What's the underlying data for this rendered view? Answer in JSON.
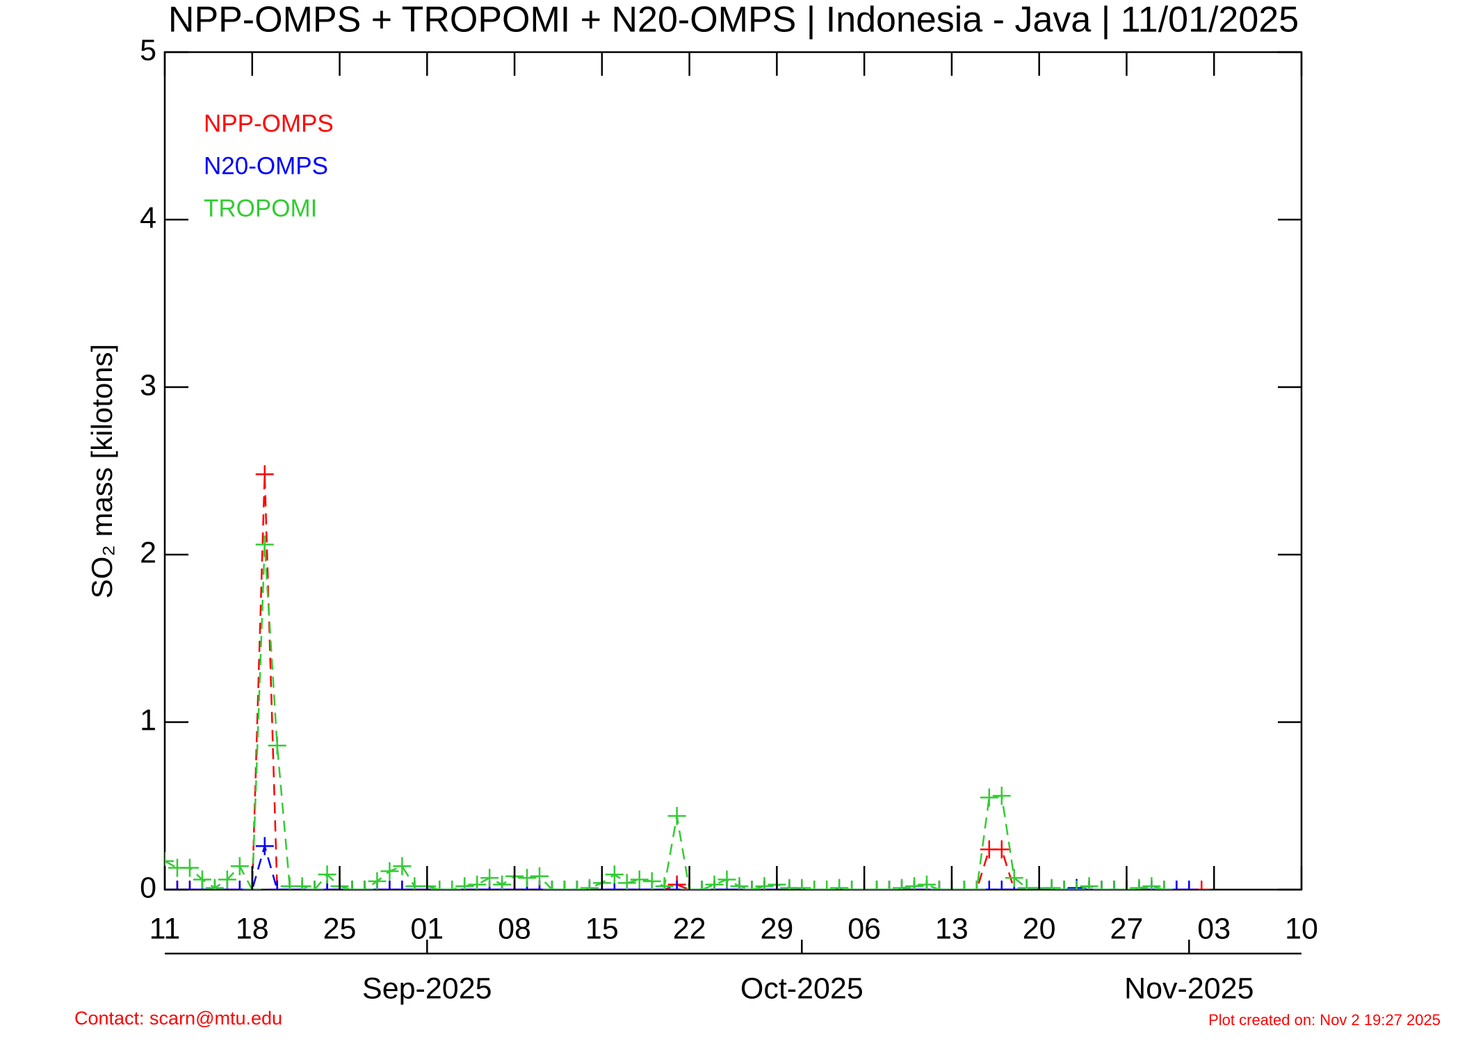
{
  "chart_data": {
    "type": "line",
    "title": "NPP-OMPS + TROPOMI + N20-OMPS | Indonesia - Java | 11/01/2025",
    "y_label": "SO₂ mass [kilotons]",
    "contact": "Contact: scarn@mtu.edu",
    "created": "Plot created on: Nov  2 19:27 2025",
    "legend": "upper left",
    "xlim": [
      "2025-08-11",
      "2025-11-10"
    ],
    "xticks": [
      {
        "value": "2025-08-11",
        "label": "11"
      },
      {
        "value": "2025-08-18",
        "label": "18"
      },
      {
        "value": "2025-08-25",
        "label": "25"
      },
      {
        "value": "2025-09-01",
        "label": "01"
      },
      {
        "value": "2025-09-08",
        "label": "08"
      },
      {
        "value": "2025-09-15",
        "label": "15"
      },
      {
        "value": "2025-09-22",
        "label": "22"
      },
      {
        "value": "2025-09-29",
        "label": "29"
      },
      {
        "value": "2025-10-06",
        "label": "06"
      },
      {
        "value": "2025-10-13",
        "label": "13"
      },
      {
        "value": "2025-10-20",
        "label": "20"
      },
      {
        "value": "2025-10-27",
        "label": "27"
      },
      {
        "value": "2025-11-03",
        "label": "03"
      },
      {
        "value": "2025-11-10",
        "label": "10"
      }
    ],
    "month_ticks": [
      {
        "value": "2025-09-01",
        "label": "Sep-2025"
      },
      {
        "value": "2025-10-01",
        "label": "Oct-2025"
      },
      {
        "value": "2025-11-01",
        "label": "Nov-2025"
      }
    ],
    "ylim": [
      0,
      5
    ],
    "yticks": [
      0,
      1,
      2,
      3,
      4,
      5
    ],
    "x": [
      "2025-08-11",
      "2025-08-12",
      "2025-08-13",
      "2025-08-14",
      "2025-08-15",
      "2025-08-16",
      "2025-08-17",
      "2025-08-18",
      "2025-08-19",
      "2025-08-20",
      "2025-08-21",
      "2025-08-22",
      "2025-08-23",
      "2025-08-24",
      "2025-08-25",
      "2025-08-26",
      "2025-08-27",
      "2025-08-28",
      "2025-08-29",
      "2025-08-30",
      "2025-08-31",
      "2025-09-01",
      "2025-09-02",
      "2025-09-03",
      "2025-09-04",
      "2025-09-05",
      "2025-09-06",
      "2025-09-07",
      "2025-09-08",
      "2025-09-09",
      "2025-09-10",
      "2025-09-11",
      "2025-09-12",
      "2025-09-13",
      "2025-09-14",
      "2025-09-15",
      "2025-09-16",
      "2025-09-17",
      "2025-09-18",
      "2025-09-19",
      "2025-09-20",
      "2025-09-21",
      "2025-09-22",
      "2025-09-23",
      "2025-09-24",
      "2025-09-25",
      "2025-09-26",
      "2025-09-27",
      "2025-09-28",
      "2025-09-29",
      "2025-09-30",
      "2025-10-01",
      "2025-10-02",
      "2025-10-03",
      "2025-10-04",
      "2025-10-05",
      "2025-10-06",
      "2025-10-07",
      "2025-10-08",
      "2025-10-09",
      "2025-10-10",
      "2025-10-11",
      "2025-10-12",
      "2025-10-13",
      "2025-10-14",
      "2025-10-15",
      "2025-10-16",
      "2025-10-17",
      "2025-10-18",
      "2025-10-19",
      "2025-10-20",
      "2025-10-21",
      "2025-10-22",
      "2025-10-23",
      "2025-10-24",
      "2025-10-25",
      "2025-10-26",
      "2025-10-27",
      "2025-10-28",
      "2025-10-29",
      "2025-10-30",
      "2025-10-31",
      "2025-11-01",
      "2025-11-02"
    ],
    "series": [
      {
        "name": "NPP-OMPS",
        "color": "#ff0000",
        "values": [
          0,
          0,
          0,
          0,
          0,
          0,
          0,
          0,
          2.48,
          0,
          0,
          0,
          0,
          0,
          0,
          0,
          0,
          0,
          0,
          0,
          0,
          0,
          0,
          0,
          0,
          0,
          0,
          0,
          0,
          0,
          0,
          0,
          0,
          0,
          0,
          0,
          0,
          0,
          0,
          0,
          0,
          0.03,
          0,
          0,
          0,
          0,
          0,
          0,
          0,
          0,
          0,
          0,
          0,
          0,
          0,
          0,
          0,
          0,
          0,
          0,
          0,
          0,
          0,
          0,
          0,
          0,
          0.24,
          0.24,
          0,
          0,
          0,
          0,
          0,
          0,
          0,
          0,
          0,
          0,
          0,
          0,
          0,
          0,
          0,
          0
        ]
      },
      {
        "name": "N20-OMPS",
        "color": "#0000ff",
        "values": [
          0,
          0,
          0,
          0,
          0,
          0,
          0,
          0,
          0.26,
          0,
          0,
          0,
          0,
          0,
          0,
          0,
          0,
          0,
          0,
          0,
          0,
          0,
          0,
          0,
          0,
          0,
          0,
          0,
          0,
          0,
          0,
          0,
          0,
          0,
          0,
          0,
          0,
          0,
          0,
          0,
          0,
          0,
          0,
          0,
          0,
          0,
          0,
          0,
          0,
          0,
          0,
          0,
          0,
          0,
          0,
          0,
          0,
          0,
          0,
          0,
          0,
          0,
          0,
          0,
          0,
          0,
          0,
          0,
          0,
          0,
          0,
          0,
          0,
          0.01,
          0,
          0,
          0,
          0,
          0,
          0,
          0,
          0,
          0,
          null
        ]
      },
      {
        "name": "TROPOMI",
        "color": "#33cc33",
        "values": [
          0.17,
          0.13,
          0.13,
          0.06,
          0.01,
          0.06,
          0.14,
          0.0,
          2.06,
          0.86,
          0.02,
          0.02,
          0.0,
          0.09,
          0.02,
          0.0,
          0.0,
          0.05,
          0.11,
          0.14,
          0.02,
          0.02,
          0.0,
          0.0,
          0.02,
          0.03,
          0.07,
          0.03,
          0.08,
          0.07,
          0.08,
          0.0,
          0.0,
          0.0,
          0.01,
          0.04,
          0.09,
          0.04,
          0.06,
          0.05,
          0.02,
          0.44,
          0.0,
          0.0,
          0.03,
          0.06,
          0.02,
          0.0,
          0.02,
          0.03,
          0.01,
          0.01,
          0.0,
          0.0,
          0.01,
          0.0,
          0.0,
          0.0,
          0.0,
          0.01,
          0.02,
          0.03,
          0.0,
          0.0,
          0.0,
          0.0,
          0.55,
          0.56,
          0.07,
          0.01,
          0.01,
          0.01,
          0.0,
          0.0,
          0.02,
          0.0,
          0.0,
          0.0,
          0.01,
          0.02,
          0.0,
          null,
          null,
          null
        ]
      }
    ]
  }
}
